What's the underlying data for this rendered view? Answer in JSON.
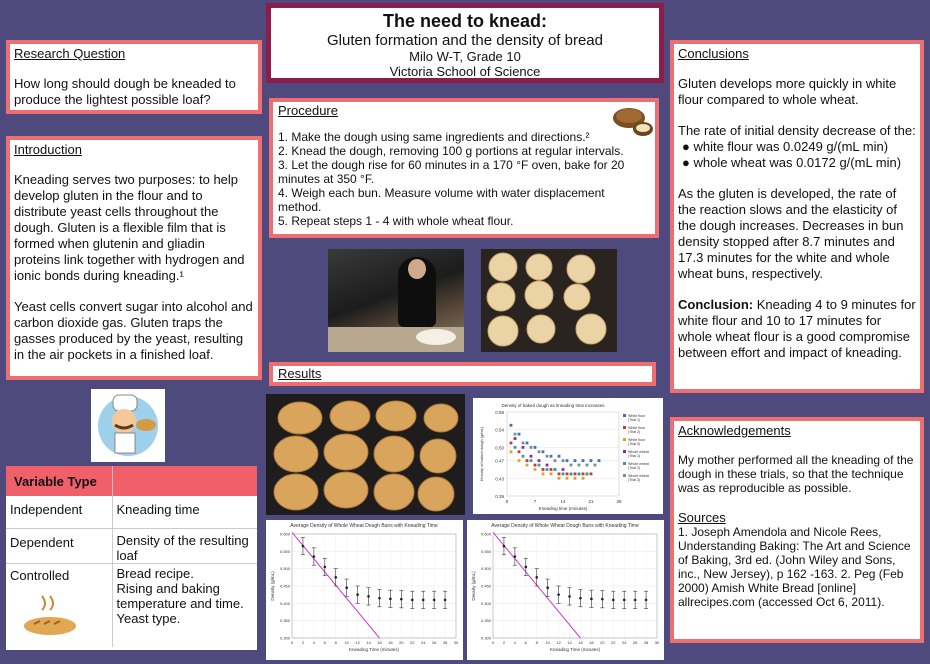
{
  "title": {
    "main": "The need to knead:",
    "sub": "Gluten formation and the density of bread",
    "author": "Milo W-T, Grade 10",
    "school": "Victoria School of Science"
  },
  "research": {
    "heading": "Research Question",
    "text": "How long should dough be kneaded to produce the lightest possible loaf?"
  },
  "introduction": {
    "heading": "Introduction",
    "p1": "Kneading serves two purposes: to help develop gluten in the flour and to distribute yeast cells throughout the dough. Gluten is a flexible film that is formed when glutenin and gliadin proteins link together with hydrogen and ionic bonds during kneading.¹",
    "p2": "Yeast cells convert sugar into alcohol and carbon dioxide gas. Gluten traps the gasses produced by the yeast, resulting in the air pockets in a finished loaf."
  },
  "procedure": {
    "heading": "Procedure",
    "steps": [
      "1. Make the dough using same ingredients and directions.²",
      "2. Knead the dough, removing 100 g portions at regular intervals.",
      "3. Let the dough rise for 60 minutes in a 170 °F oven, bake for 20 minutes at 350 °F.",
      "4. Weigh each bun. Measure volume with water displacement method.",
      "5. Repeat steps 1 - 4 with whole wheat flour."
    ]
  },
  "results": {
    "heading": "Results"
  },
  "variables": {
    "header": "Variable Type",
    "rows": [
      {
        "type": "Independent",
        "value": "Kneading time"
      },
      {
        "type": "Dependent",
        "value": "Density of the resulting loaf"
      },
      {
        "type": "Controlled",
        "value": "Bread recipe.\nRising and baking temperature and time.\nYeast type."
      }
    ]
  },
  "conclusions": {
    "heading": "Conclusions",
    "p1": "Gluten develops more quickly in white flour compared to whole wheat.",
    "p2": "The rate of initial density decrease of the:",
    "bullet1": "white flour was 0.0249 g/(mL min)",
    "bullet2": "whole wheat was 0.0172 g/(mL min)",
    "p3": "As the gluten is developed, the rate of the reaction slows and the elasticity of the dough increases. Decreases in bun density stopped after 8.7 minutes and 17.3 minutes for the white and whole wheat buns, respectively.",
    "conclusion_label": "Conclusion:",
    "conclusion_text": " Kneading 4 to 9 minutes for white flour and 10 to 17 minutes for whole wheat flour is a good compromise between effort and impact of kneading."
  },
  "acknowledgements": {
    "heading": "Acknowledgements",
    "text": "My mother performed all the kneading of the dough in these trials, so that the technique was as reproducible as possible.",
    "sources_heading": "Sources",
    "sources": "1. Joseph Amendola and Nicole Rees, Understanding Baking: The Art and Science of Baking, 3rd ed. (John Wiley and Sons, inc., New Jersey), p 162 -163. 2. Peg (Feb 2000) Amish White Bread [online] allrecipes.com (accessed Oct 6, 2011)."
  },
  "colors": {
    "background": "#4e4a7d",
    "accent": "#ee6f72",
    "title_border": "#8b1c4c",
    "table_header": "#f0606a"
  },
  "chart_data": [
    {
      "type": "scatter",
      "title": "Density of baked dough as kneading time increases",
      "xlabel": "Kneading time (minutes)",
      "ylabel": "Density of baked dough (g/mL)",
      "xticks": [
        "0",
        "7",
        "14",
        "21",
        "28"
      ],
      "yticks": [
        "0.58",
        "0.54",
        "0.50",
        "0.47",
        "0.43",
        "0.39"
      ],
      "ylim": [
        0.39,
        0.58
      ],
      "legend": [
        "White flour (Trial 1)",
        "White flour (Trial 2)",
        "White flour (Trial 3)",
        "Whole wheat (Trial 1)",
        "Whole wheat (Trial 2)",
        "Whole wheat (Trial 3)"
      ],
      "series": [
        {
          "name": "White flour (Trial 1)",
          "color": "#3b6fc9",
          "x": [
            1,
            3,
            5,
            7,
            9,
            11,
            13,
            15,
            17,
            19,
            21,
            23
          ],
          "y": [
            0.55,
            0.53,
            0.51,
            0.5,
            0.49,
            0.48,
            0.48,
            0.47,
            0.47,
            0.47,
            0.47,
            0.47
          ]
        },
        {
          "name": "White flour (Trial 2)",
          "color": "#d0342c",
          "x": [
            1,
            3,
            5,
            7,
            9,
            11,
            13,
            15,
            17,
            19,
            21
          ],
          "y": [
            0.51,
            0.49,
            0.47,
            0.46,
            0.45,
            0.45,
            0.44,
            0.44,
            0.44,
            0.44,
            0.44
          ]
        },
        {
          "name": "White flour (Trial 3)",
          "color": "#e6a117",
          "x": [
            1,
            3,
            5,
            7,
            9,
            11,
            13,
            15,
            17,
            19
          ],
          "y": [
            0.49,
            0.47,
            0.46,
            0.45,
            0.44,
            0.44,
            0.43,
            0.43,
            0.43,
            0.43
          ]
        },
        {
          "name": "Whole wheat (Trial 1)",
          "color": "#8a2a9e",
          "x": [
            2,
            4,
            6,
            8,
            10,
            12,
            14,
            16,
            18,
            20
          ],
          "y": [
            0.52,
            0.5,
            0.48,
            0.47,
            0.46,
            0.45,
            0.45,
            0.44,
            0.44,
            0.44
          ]
        },
        {
          "name": "Whole wheat (Trial 2)",
          "color": "#2aa0a5",
          "x": [
            2,
            4,
            6,
            8,
            10,
            12,
            14,
            16,
            18,
            20
          ],
          "y": [
            0.5,
            0.48,
            0.47,
            0.46,
            0.45,
            0.45,
            0.44,
            0.44,
            0.44,
            0.44
          ]
        },
        {
          "name": "Whole wheat (Trial 3)",
          "color": "#7f8c8d",
          "x": [
            2,
            4,
            6,
            8,
            10,
            12,
            14,
            16,
            18,
            20,
            22
          ],
          "y": [
            0.53,
            0.51,
            0.5,
            0.49,
            0.48,
            0.47,
            0.47,
            0.46,
            0.46,
            0.46,
            0.46
          ]
        }
      ]
    },
    {
      "type": "scatter",
      "title": "Average Density of Whole Wheat Dough Buns with Kneading Time",
      "xlabel": "Kneading Time (minutes)",
      "ylabel": "Density (g/mL)",
      "xticks": [
        "0",
        "2",
        "4",
        "6",
        "8",
        "10",
        "12",
        "14",
        "16",
        "18",
        "20",
        "22",
        "24",
        "26",
        "28",
        "30"
      ],
      "yticks": [
        "0.600",
        "0.550",
        "0.500",
        "0.450",
        "0.400",
        "0.350",
        "0.300"
      ],
      "xlim": [
        0,
        30
      ],
      "ylim": [
        0.3,
        0.6
      ],
      "series": [
        {
          "name": "",
          "color": "#2b2b2b",
          "x": [
            2,
            4,
            6,
            8,
            10,
            12,
            14,
            16,
            18,
            20,
            22,
            24,
            26,
            28
          ],
          "y": [
            0.565,
            0.535,
            0.505,
            0.475,
            0.445,
            0.425,
            0.42,
            0.415,
            0.413,
            0.412,
            0.41,
            0.41,
            0.41,
            0.41
          ],
          "err": 0.025
        },
        {
          "name": "",
          "color": "#cc33cc",
          "x": [
            0,
            16
          ],
          "y": [
            0.605,
            0.3
          ]
        }
      ]
    },
    {
      "type": "scatter",
      "title": "Average Density of Whole Wheat Dough Buns with Kneading Time",
      "xlabel": "Kneading Time (minutes)",
      "ylabel": "Density (g/mL)",
      "xticks": [
        "0",
        "2",
        "4",
        "6",
        "8",
        "10",
        "12",
        "14",
        "16",
        "18",
        "20",
        "22",
        "24",
        "26",
        "28",
        "30"
      ],
      "yticks": [
        "0.600",
        "0.550",
        "0.500",
        "0.450",
        "0.400",
        "0.350",
        "0.300"
      ],
      "xlim": [
        0,
        30
      ],
      "ylim": [
        0.3,
        0.6
      ],
      "series": [
        {
          "name": "",
          "color": "#2b2b2b",
          "x": [
            2,
            4,
            6,
            8,
            10,
            12,
            14,
            16,
            18,
            20,
            22,
            24,
            26,
            28
          ],
          "y": [
            0.565,
            0.535,
            0.505,
            0.475,
            0.445,
            0.425,
            0.42,
            0.415,
            0.413,
            0.412,
            0.41,
            0.41,
            0.41,
            0.41
          ],
          "err": 0.025
        },
        {
          "name": "",
          "color": "#cc33cc",
          "x": [
            0,
            16
          ],
          "y": [
            0.605,
            0.3
          ]
        }
      ]
    }
  ]
}
